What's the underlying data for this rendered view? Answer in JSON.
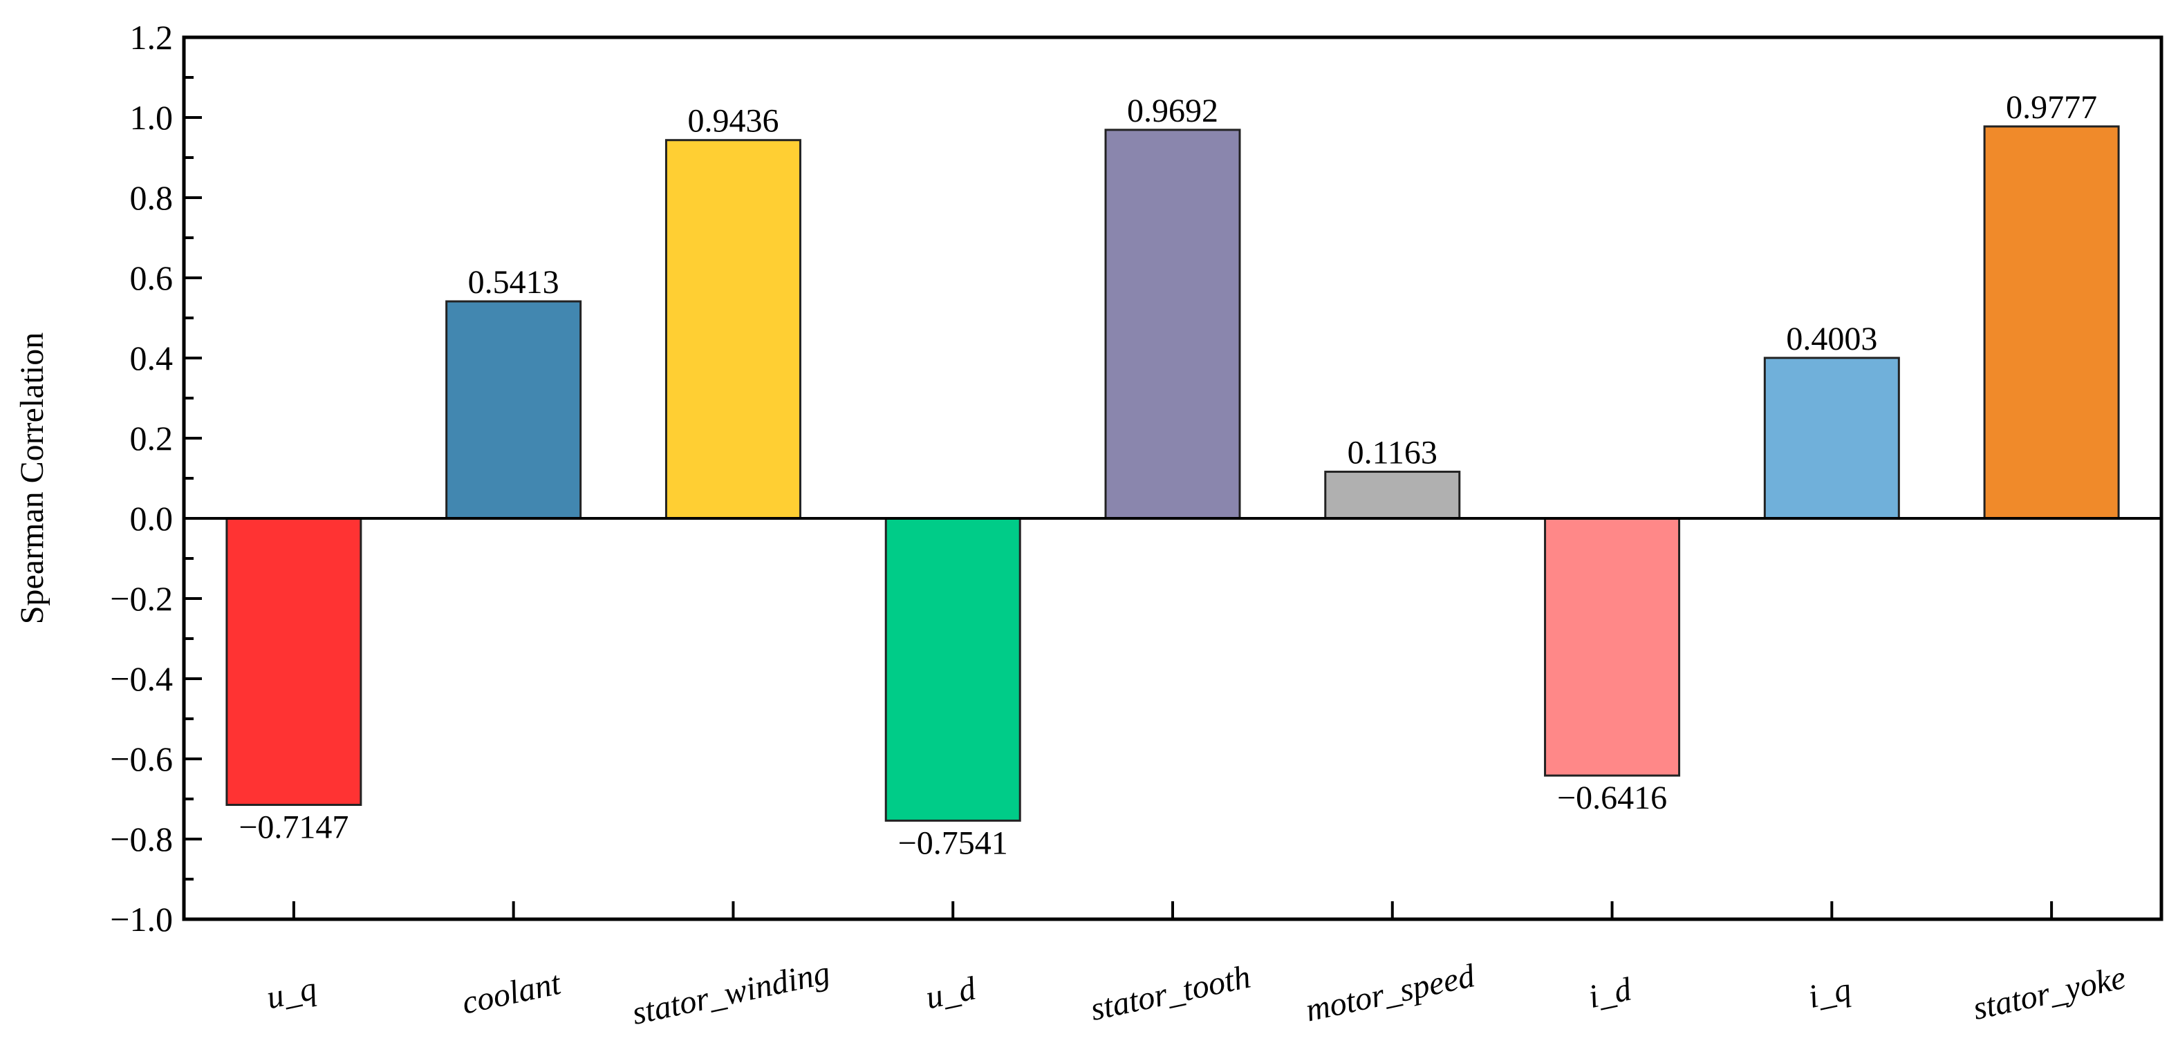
{
  "chart_data": {
    "type": "bar",
    "title": "",
    "xlabel": "",
    "ylabel": "Spearman Correlation",
    "ylim": [
      -1.0,
      1.2
    ],
    "yticks": [
      -1.0,
      -0.8,
      -0.6,
      -0.4,
      -0.2,
      0.0,
      0.2,
      0.4,
      0.6,
      0.8,
      1.0,
      1.2
    ],
    "ytick_labels": [
      "−1.0",
      "−0.8",
      "−0.6",
      "−0.4",
      "−0.2",
      "0.0",
      "0.2",
      "0.4",
      "0.6",
      "0.8",
      "1.0",
      "1.2"
    ],
    "grid": false,
    "categories": [
      "u_q",
      "coolant",
      "stator_winding",
      "u_d",
      "stator_tooth",
      "motor_speed",
      "i_d",
      "i_q",
      "stator_yoke"
    ],
    "values": [
      -0.7147,
      0.5413,
      0.9436,
      -0.7541,
      0.9692,
      0.1163,
      -0.6416,
      0.4003,
      0.9777
    ],
    "data_labels": [
      "−0.7147",
      "0.5413",
      "0.9436",
      "−0.7541",
      "0.9692",
      "0.1163",
      "−0.6416",
      "0.4003",
      "0.9777"
    ],
    "colors": [
      "#ff3333",
      "#4287b0",
      "#ffcf33",
      "#00cc88",
      "#8a86ad",
      "#b0b0b0",
      "#ff8888",
      "#70b0da",
      "#f08a2a"
    ]
  }
}
